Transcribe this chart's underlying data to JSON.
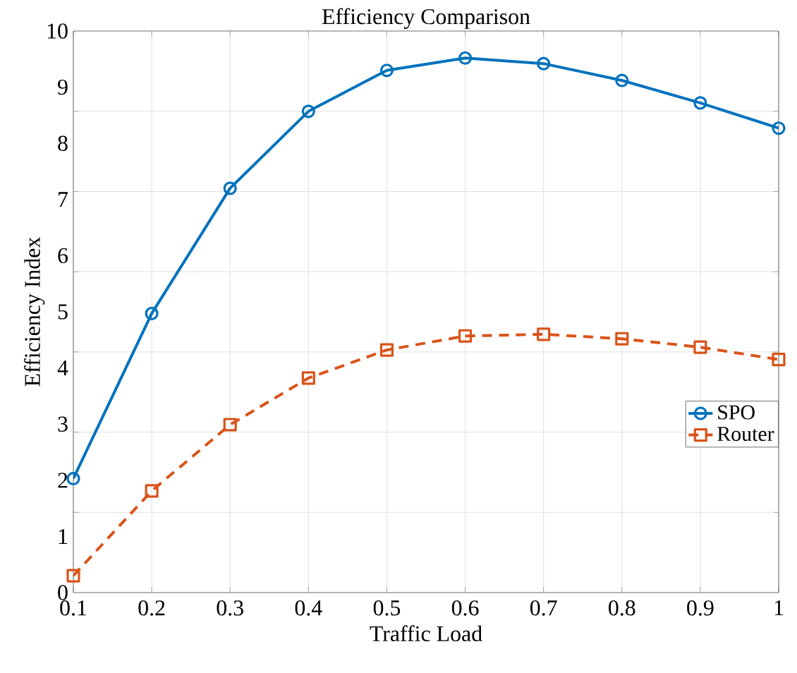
{
  "chart_data": {
    "type": "line",
    "title": "Efficiency Comparison",
    "xlabel": "Traffic Load",
    "ylabel": "Efficiency Index",
    "x": [
      0.1,
      0.2,
      0.3,
      0.4,
      0.5,
      0.6,
      0.7,
      0.8,
      0.9,
      1
    ],
    "series": [
      {
        "name": "SPO",
        "color": "#0072bd",
        "marker": "circle",
        "line_style": "solid",
        "values": [
          2.03,
          4.97,
          7.2,
          8.57,
          9.3,
          9.52,
          9.42,
          9.12,
          8.72,
          8.27
        ]
      },
      {
        "name": "Router",
        "color": "#d95319",
        "marker": "square",
        "line_style": "dashed",
        "values": [
          0.3,
          1.81,
          2.99,
          3.82,
          4.32,
          4.57,
          4.6,
          4.52,
          4.37,
          4.15
        ]
      }
    ],
    "xlim": [
      0.1,
      1
    ],
    "xticks": [
      0.1,
      0.2,
      0.3,
      0.4,
      0.5,
      0.6,
      0.7,
      0.8,
      0.9,
      1
    ],
    "ylim": [
      0,
      10
    ],
    "yticks": [
      0,
      1,
      2,
      3,
      4,
      5,
      6,
      7,
      8,
      9,
      10,
      {
        "value": 1.4286,
        "label": null
      },
      {
        "value": 2.8571,
        "label": null
      },
      {
        "value": 4.2857,
        "label": null
      },
      {
        "value": 5.7143,
        "label": null
      },
      {
        "value": 7.1429,
        "label": null
      },
      {
        "value": 8.5714,
        "label": null
      }
    ],
    "grid": true,
    "legend": "right"
  }
}
